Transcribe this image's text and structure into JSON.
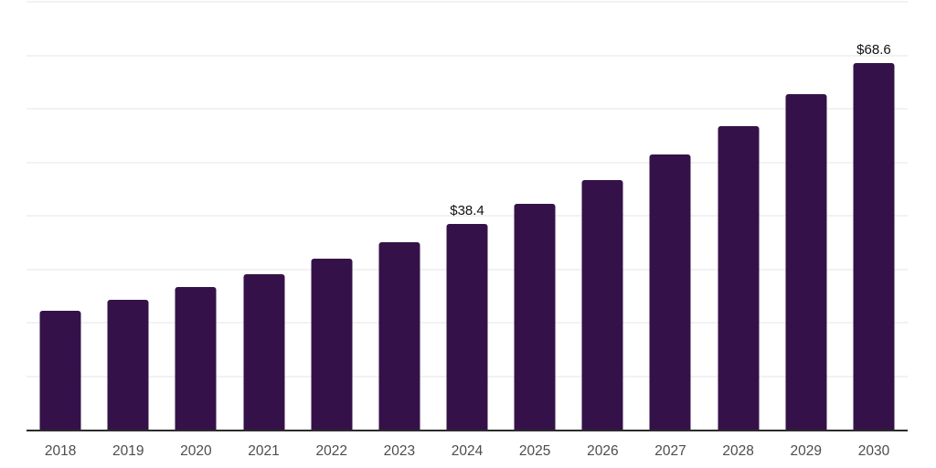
{
  "chart_data": {
    "type": "bar",
    "title": "",
    "xlabel": "",
    "ylabel": "",
    "categories": [
      "2018",
      "2019",
      "2020",
      "2021",
      "2022",
      "2023",
      "2024",
      "2025",
      "2026",
      "2027",
      "2028",
      "2029",
      "2030"
    ],
    "values": [
      22.2,
      24.3,
      26.6,
      29.1,
      32.0,
      35.0,
      38.4,
      42.3,
      46.6,
      51.4,
      56.7,
      62.7,
      68.6
    ],
    "data_labels": {
      "2024": "$38.4",
      "2030": "$68.6"
    },
    "ylim": [
      0,
      80
    ],
    "grid": "horizontal gridlines every 10 units, no y-axis tick labels",
    "gridline_values": [
      10,
      20,
      30,
      40,
      50,
      60,
      70,
      80
    ],
    "legend": "none",
    "colors": {
      "bar": "#341249",
      "axis_line": "#2b2b2b",
      "gridline": "#f2f2f2",
      "tick_label": "#4d4d4d",
      "data_label": "#111111",
      "background": "#ffffff"
    }
  }
}
